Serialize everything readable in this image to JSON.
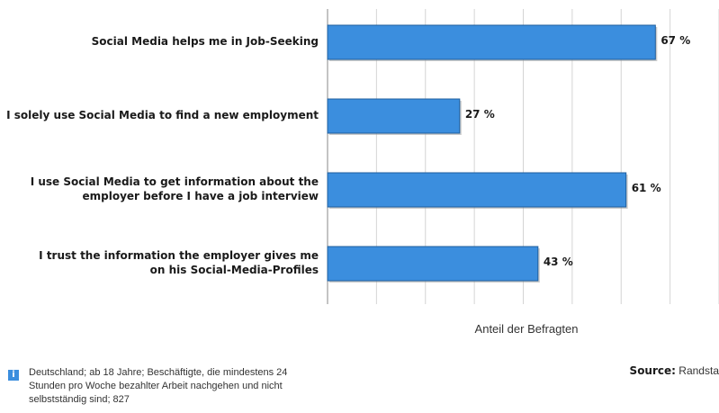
{
  "chart_data": {
    "type": "bar",
    "orientation": "horizontal",
    "categories": [
      "Social Media helps me in Job-Seeking",
      "I solely use Social Media to find a new employment",
      "I use Social Media to get information about the employer before I have a job interview",
      "I trust the information the employer gives me on his Social-Media-Profiles"
    ],
    "category_lines": [
      [
        "Social Media helps me in Job-Seeking"
      ],
      [
        "I solely use Social Media to find a new employment"
      ],
      [
        "I use Social Media to get information about the",
        "employer before I have a job interview"
      ],
      [
        "I trust the information the employer gives me",
        "on his Social-Media-Profiles"
      ]
    ],
    "values": [
      67,
      27,
      61,
      43
    ],
    "value_labels": [
      "67 %",
      "27 %",
      "61 %",
      "43 %"
    ],
    "xlim": [
      0,
      100
    ],
    "xlabel": "Anteil der Befragten",
    "grid": true,
    "colors": {
      "bar": "#3b8ede",
      "bar_border": "#1f5f9e",
      "grid": "#d4d4d4",
      "axis": "#888888"
    }
  },
  "footnote": "Deutschland; ab 18 Jahre; Beschäftigte, die mindestens 24 Stunden pro Woche bezahlter Arbeit nachgehen und nicht selbstständig sind; 827",
  "source": {
    "label": "Source:",
    "value": "Randsta"
  },
  "info_icon": "info-icon"
}
